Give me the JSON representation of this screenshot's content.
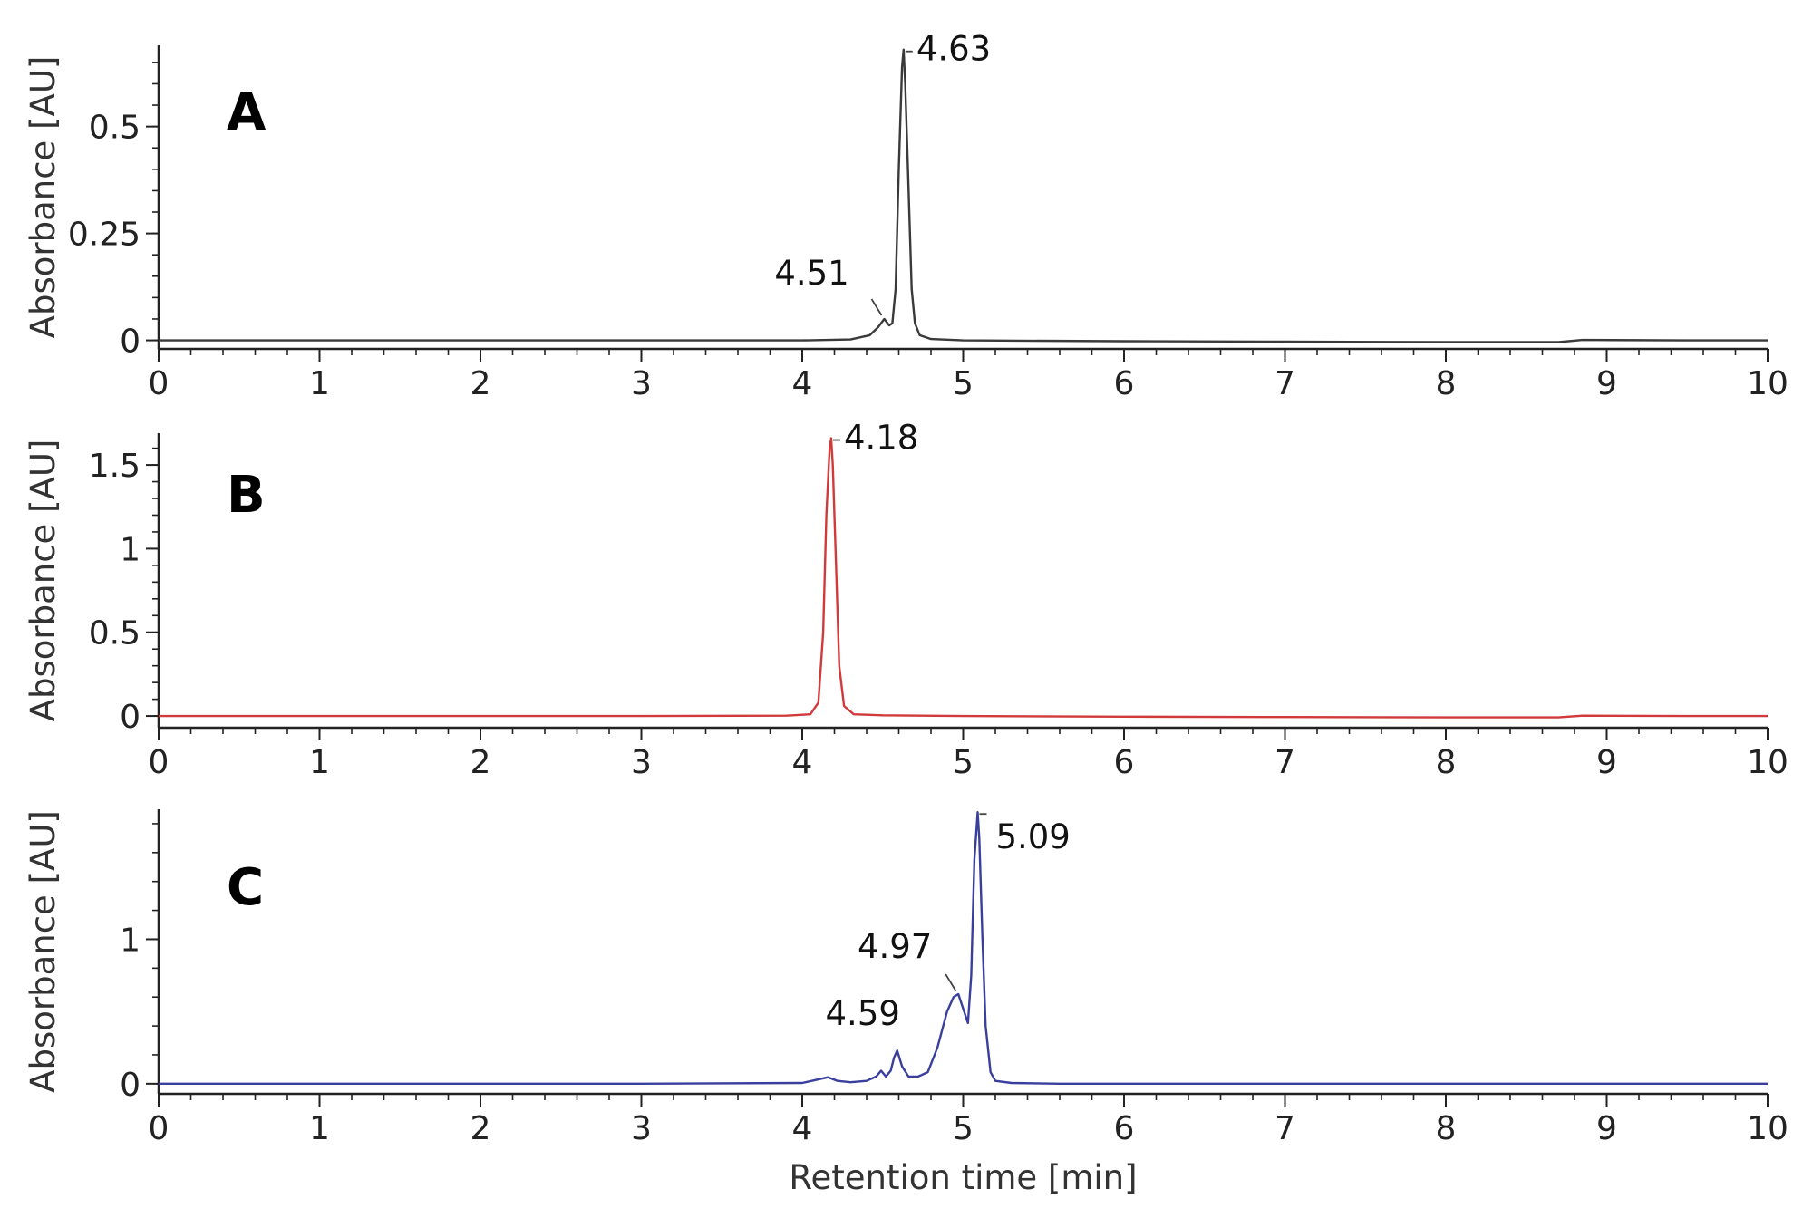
{
  "chart_data": [
    {
      "type": "line",
      "panel_letter": "A",
      "ylabel": "Absorbance [AU]",
      "xlabel": "",
      "xlim": [
        0,
        10
      ],
      "ylim": [
        -0.02,
        0.69
      ],
      "xticks": [
        "0",
        "1",
        "2",
        "3",
        "4",
        "5",
        "6",
        "7",
        "8",
        "9",
        "10"
      ],
      "yticks": [
        {
          "value": 0,
          "label": "0"
        },
        {
          "value": 0.25,
          "label": "0.25"
        },
        {
          "value": 0.5,
          "label": "0.5"
        }
      ],
      "color": "#3a3a3a",
      "series": [
        {
          "x": [
            0,
            1,
            2,
            3,
            4.0,
            4.3,
            4.42,
            4.47,
            4.51,
            4.54,
            4.56,
            4.58,
            4.6,
            4.62,
            4.63,
            4.64,
            4.66,
            4.68,
            4.7,
            4.73,
            4.8,
            5.0,
            6,
            7,
            8,
            8.7,
            8.85,
            9.5,
            10
          ],
          "y": [
            0.0,
            0.0,
            0.0,
            0.0,
            0.0,
            0.002,
            0.012,
            0.03,
            0.05,
            0.035,
            0.04,
            0.12,
            0.4,
            0.64,
            0.68,
            0.6,
            0.36,
            0.12,
            0.04,
            0.012,
            0.003,
            0.0,
            -0.002,
            -0.003,
            -0.004,
            -0.004,
            0.001,
            0.0,
            0.0
          ]
        }
      ],
      "peak_labels": [
        {
          "text": "4.63",
          "x": 4.63,
          "y": 0.68
        },
        {
          "text": "4.51",
          "x": 4.51,
          "y": 0.05
        }
      ]
    },
    {
      "type": "line",
      "panel_letter": "B",
      "ylabel": "Absorbance [AU]",
      "xlabel": "",
      "xlim": [
        0,
        10
      ],
      "ylim": [
        -0.07,
        1.69
      ],
      "xticks": [
        "0",
        "1",
        "2",
        "3",
        "4",
        "5",
        "6",
        "7",
        "8",
        "9",
        "10"
      ],
      "yticks": [
        {
          "value": 0,
          "label": "0"
        },
        {
          "value": 0.5,
          "label": "0.5"
        },
        {
          "value": 1,
          "label": "1"
        },
        {
          "value": 1.5,
          "label": "1.5"
        }
      ],
      "color": "#d03a3a",
      "series": [
        {
          "x": [
            0,
            1,
            2,
            3,
            3.9,
            4.05,
            4.1,
            4.13,
            4.15,
            4.17,
            4.18,
            4.19,
            4.21,
            4.23,
            4.26,
            4.32,
            4.5,
            5,
            6,
            7,
            8,
            8.7,
            8.85,
            9.5,
            10
          ],
          "y": [
            0.0,
            0.0,
            0.0,
            0.0,
            0.002,
            0.01,
            0.08,
            0.5,
            1.2,
            1.6,
            1.66,
            1.5,
            0.9,
            0.3,
            0.06,
            0.01,
            0.004,
            0.0,
            -0.004,
            -0.006,
            -0.008,
            -0.008,
            0.002,
            0.0,
            0.0
          ]
        }
      ],
      "peak_labels": [
        {
          "text": "4.18",
          "x": 4.18,
          "y": 1.66
        }
      ]
    },
    {
      "type": "line",
      "panel_letter": "C",
      "ylabel": "Absorbance [AU]",
      "xlabel": "Retention time [min]",
      "xlim": [
        0,
        10
      ],
      "ylim": [
        -0.07,
        1.9
      ],
      "xticks": [
        "0",
        "1",
        "2",
        "3",
        "4",
        "5",
        "6",
        "7",
        "8",
        "9",
        "10"
      ],
      "yticks": [
        {
          "value": 0,
          "label": "0"
        },
        {
          "value": 1,
          "label": "1"
        }
      ],
      "color": "#3a3f9e",
      "series": [
        {
          "x": [
            0,
            1,
            2,
            3,
            4.0,
            4.1,
            4.16,
            4.22,
            4.3,
            4.4,
            4.46,
            4.49,
            4.52,
            4.55,
            4.57,
            4.59,
            4.62,
            4.66,
            4.72,
            4.78,
            4.84,
            4.9,
            4.94,
            4.97,
            5.0,
            5.03,
            5.05,
            5.07,
            5.09,
            5.1,
            5.12,
            5.14,
            5.17,
            5.2,
            5.3,
            5.6,
            6,
            7,
            8,
            9,
            10
          ],
          "y": [
            0.0,
            0.0,
            0.0,
            0.0,
            0.005,
            0.03,
            0.045,
            0.02,
            0.01,
            0.02,
            0.05,
            0.09,
            0.05,
            0.09,
            0.18,
            0.23,
            0.12,
            0.05,
            0.05,
            0.08,
            0.25,
            0.5,
            0.6,
            0.62,
            0.52,
            0.42,
            0.75,
            1.55,
            1.88,
            1.7,
            1.0,
            0.4,
            0.08,
            0.02,
            0.005,
            0.0,
            0.0,
            0.0,
            0.0,
            0.0,
            0.0
          ]
        }
      ],
      "peak_labels": [
        {
          "text": "5.09",
          "x": 5.09,
          "y": 1.88
        },
        {
          "text": "4.97",
          "x": 4.97,
          "y": 0.62
        },
        {
          "text": "4.59",
          "x": 4.59,
          "y": 0.23
        }
      ]
    }
  ]
}
